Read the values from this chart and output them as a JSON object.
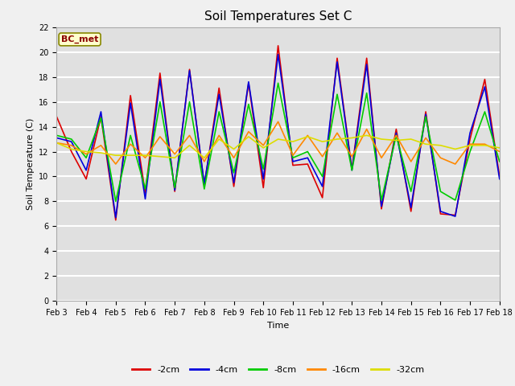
{
  "title": "Soil Temperatures Set C",
  "xlabel": "Time",
  "ylabel": "Soil Temperature (C)",
  "annotation": "BC_met",
  "ylim": [
    0,
    22
  ],
  "xlim": [
    0,
    15
  ],
  "tick_labels": [
    "Feb 3",
    "Feb 4",
    "Feb 5",
    "Feb 6",
    "Feb 7",
    "Feb 8",
    "Feb 9",
    "Feb 10",
    "Feb 11",
    "Feb 12",
    "Feb 13",
    "Feb 14",
    "Feb 15",
    "Feb 16",
    "Feb 17",
    "Feb 18"
  ],
  "series": {
    "-2cm": {
      "color": "#dd0000",
      "values": [
        14.8,
        12.0,
        9.8,
        14.8,
        6.5,
        16.5,
        8.7,
        18.3,
        8.8,
        18.6,
        9.3,
        17.1,
        9.2,
        17.5,
        9.1,
        20.5,
        10.9,
        11.0,
        8.3,
        19.5,
        10.6,
        19.5,
        7.4,
        13.8,
        7.2,
        15.2,
        7.0,
        6.9,
        13.0,
        17.8,
        10.0
      ]
    },
    "-4cm": {
      "color": "#0000dd",
      "values": [
        13.1,
        12.8,
        10.5,
        15.2,
        6.7,
        15.9,
        8.2,
        17.8,
        8.9,
        18.5,
        9.4,
        16.6,
        9.5,
        17.6,
        9.8,
        19.8,
        11.2,
        11.5,
        9.2,
        19.2,
        10.5,
        19.0,
        7.6,
        13.5,
        7.5,
        15.0,
        7.2,
        6.8,
        13.5,
        17.2,
        9.8
      ]
    },
    "-8cm": {
      "color": "#00cc00",
      "values": [
        13.3,
        13.0,
        11.5,
        14.7,
        8.0,
        13.3,
        9.0,
        16.0,
        9.1,
        16.0,
        9.0,
        15.2,
        10.3,
        15.8,
        10.6,
        17.5,
        11.5,
        12.0,
        10.0,
        16.6,
        10.5,
        16.7,
        8.1,
        13.3,
        8.8,
        14.8,
        8.8,
        8.1,
        12.0,
        15.2,
        11.2
      ]
    },
    "-16cm": {
      "color": "#ff8800",
      "values": [
        12.7,
        12.5,
        11.8,
        12.5,
        11.0,
        12.6,
        11.5,
        13.2,
        11.8,
        13.3,
        11.2,
        13.3,
        11.5,
        13.6,
        12.5,
        14.4,
        11.7,
        13.3,
        11.6,
        13.5,
        11.6,
        13.8,
        11.5,
        13.3,
        11.2,
        13.1,
        11.5,
        11.0,
        12.6,
        12.6,
        12.0
      ]
    },
    "-32cm": {
      "color": "#dddd00",
      "values": [
        12.7,
        12.2,
        12.0,
        11.9,
        11.7,
        11.7,
        11.7,
        11.6,
        11.5,
        12.5,
        11.5,
        13.0,
        12.2,
        13.2,
        12.3,
        13.0,
        12.8,
        13.2,
        12.8,
        13.0,
        13.1,
        13.3,
        13.0,
        12.9,
        13.0,
        12.6,
        12.5,
        12.2,
        12.5,
        12.5,
        12.3
      ]
    }
  },
  "background_color": "#f0f0f0",
  "plot_bg_color": "#e0e0e0",
  "grid_color": "#ffffff",
  "title_fontsize": 11,
  "axis_fontsize": 8,
  "tick_fontsize": 7,
  "legend_fontsize": 8
}
